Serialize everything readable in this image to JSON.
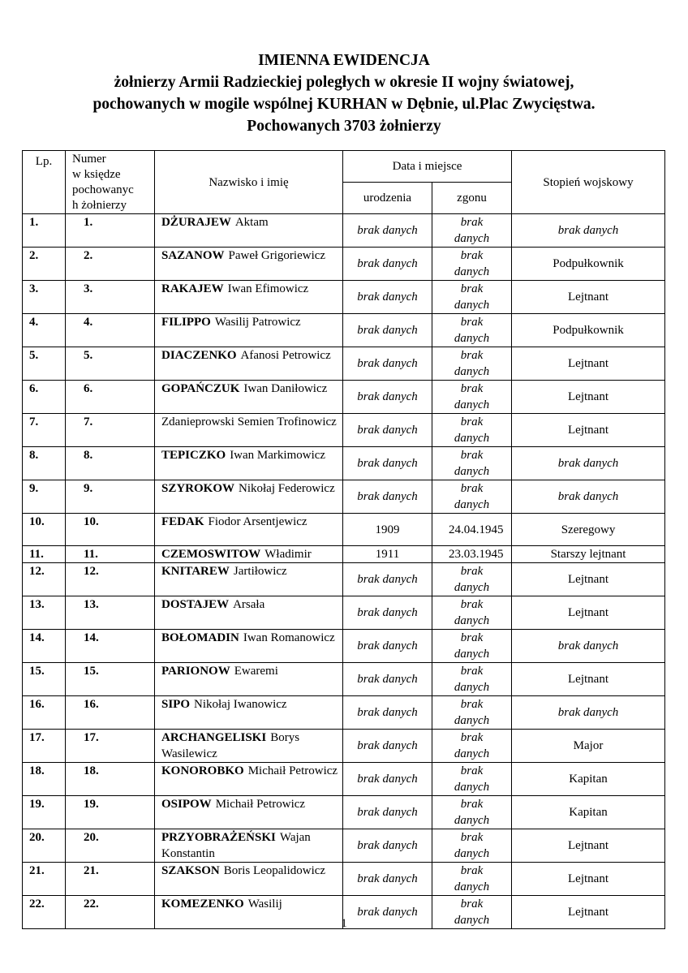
{
  "header": {
    "title": "IMIENNA EWIDENCJA",
    "subtitle_lines": [
      "żołnierzy Armii Radzieckiej poległych w okresie II wojny światowej,",
      "pochowanych w mogile wspólnej KURHAN w Dębnie, ul.Plac Zwycięstwa.",
      "Pochowanych 3703 żołnierzy"
    ]
  },
  "table": {
    "columns": {
      "lp": "Lp.",
      "number": [
        "Numer",
        "w księdze",
        "pochowanyc",
        "h żołnierzy"
      ],
      "name": "Nazwisko i imię",
      "date_place": "Data i miejsce",
      "birth": "urodzenia",
      "death": "zgonu",
      "rank": "Stopień wojskowy"
    },
    "rows": [
      {
        "lp": "1.",
        "number": "1.",
        "surname": "DŻURAJEW",
        "given": "Aktam",
        "birth": {
          "text": "brak danych",
          "style": "italic"
        },
        "death": {
          "text": "brak danych",
          "style": "italic"
        },
        "rank": {
          "text": "brak danych",
          "style": "italic"
        }
      },
      {
        "lp": "2.",
        "number": "2.",
        "surname": "SAZANOW",
        "given": "Paweł Grigoriewicz",
        "birth": {
          "text": "brak danych",
          "style": "italic"
        },
        "death": {
          "text": "brak danych",
          "style": "italic"
        },
        "rank": {
          "text": "Podpułkownik",
          "style": "normal"
        }
      },
      {
        "lp": "3.",
        "number": "3.",
        "surname": "RAKAJEW",
        "given": "Iwan Efimowicz",
        "birth": {
          "text": "brak danych",
          "style": "italic"
        },
        "death": {
          "text": "brak danych",
          "style": "italic"
        },
        "rank": {
          "text": "Lejtnant",
          "style": "normal"
        }
      },
      {
        "lp": "4.",
        "number": "4.",
        "surname": "FILIPPO",
        "given": "Wasilij Patrowicz",
        "birth": {
          "text": "brak danych",
          "style": "italic"
        },
        "death": {
          "text": "brak danych",
          "style": "italic"
        },
        "rank": {
          "text": "Podpułkownik",
          "style": "normal"
        }
      },
      {
        "lp": "5.",
        "number": "5.",
        "surname": "DIACZENKO",
        "given": "Afanosi Petrowicz",
        "birth": {
          "text": "brak danych",
          "style": "italic"
        },
        "death": {
          "text": "brak danych",
          "style": "italic"
        },
        "rank": {
          "text": "Lejtnant",
          "style": "normal"
        }
      },
      {
        "lp": "6.",
        "number": "6.",
        "surname": "GOPAŃCZUK",
        "given": "Iwan Daniłowicz",
        "birth": {
          "text": "brak danych",
          "style": "italic"
        },
        "death": {
          "text": "brak danych",
          "style": "italic"
        },
        "rank": {
          "text": "Lejtnant",
          "style": "normal"
        }
      },
      {
        "lp": "7.",
        "number": "7.",
        "name": "Zdanieprowski Semien Trofinowicz",
        "birth": {
          "text": "brak danych",
          "style": "italic"
        },
        "death": {
          "text": "brak danych",
          "style": "italic"
        },
        "rank": {
          "text": "Lejtnant",
          "style": "normal"
        }
      },
      {
        "lp": "8.",
        "number": "8.",
        "surname": "TEPICZKO",
        "given": "Iwan Markimowicz",
        "birth": {
          "text": "brak danych",
          "style": "italic"
        },
        "death": {
          "text": "brak danych",
          "style": "italic"
        },
        "rank": {
          "text": "brak danych",
          "style": "italic"
        }
      },
      {
        "lp": "9.",
        "number": "9.",
        "surname": "SZYROKOW",
        "given": "Nikołaj Federowicz",
        "birth": {
          "text": "brak danych",
          "style": "italic"
        },
        "death": {
          "text": "brak danych",
          "style": "italic"
        },
        "rank": {
          "text": "brak danych",
          "style": "italic"
        }
      },
      {
        "lp": "10.",
        "number": "10.",
        "surname": "FEDAK",
        "given": "Fiodor Arsentjewicz",
        "birth": {
          "text": "1909",
          "style": "normal"
        },
        "death": {
          "text": "24.04.1945",
          "style": "normal"
        },
        "rank": {
          "text": "Szeregowy",
          "style": "normal"
        }
      },
      {
        "lp": "11.",
        "number": "11.",
        "surname": "CZEMOSWITOW",
        "given": "Władimir",
        "birth": {
          "text": "1911",
          "style": "normal"
        },
        "death": {
          "text": "23.03.1945",
          "style": "normal"
        },
        "rank": {
          "text": "Starszy lejtnant",
          "style": "normal"
        }
      },
      {
        "lp": "12.",
        "number": "12.",
        "surname": "KNITAREW",
        "given": "Jartiłowicz",
        "birth": {
          "text": "brak danych",
          "style": "italic"
        },
        "death": {
          "text": "brak danych",
          "style": "italic"
        },
        "rank": {
          "text": "Lejtnant",
          "style": "normal"
        }
      },
      {
        "lp": "13.",
        "number": "13.",
        "surname": "DOSTAJEW",
        "given": "Arsała",
        "birth": {
          "text": "brak danych",
          "style": "italic"
        },
        "death": {
          "text": "brak danych",
          "style": "italic"
        },
        "rank": {
          "text": "Lejtnant",
          "style": "normal"
        }
      },
      {
        "lp": "14.",
        "number": "14.",
        "surname": "BOŁOMADIN",
        "given": "Iwan Romanowicz",
        "birth": {
          "text": "brak danych",
          "style": "italic"
        },
        "death": {
          "text": "brak danych",
          "style": "italic"
        },
        "rank": {
          "text": "brak danych",
          "style": "italic"
        }
      },
      {
        "lp": "15.",
        "number": "15.",
        "surname": "PARIONOW",
        "given": "Ewaremi",
        "birth": {
          "text": "brak danych",
          "style": "italic"
        },
        "death": {
          "text": "brak danych",
          "style": "italic"
        },
        "rank": {
          "text": "Lejtnant",
          "style": "normal"
        }
      },
      {
        "lp": "16.",
        "number": "16.",
        "surname": "SIPO",
        "given": "Nikołaj Iwanowicz",
        "birth": {
          "text": "brak danych",
          "style": "italic"
        },
        "death": {
          "text": "brak danych",
          "style": "italic"
        },
        "rank": {
          "text": "brak danych",
          "style": "italic"
        }
      },
      {
        "lp": "17.",
        "number": "17.",
        "surname": "ARCHANGELISKI",
        "given": "Borys Wasilewicz",
        "birth": {
          "text": "brak danych",
          "style": "italic"
        },
        "death": {
          "text": "brak danych",
          "style": "italic"
        },
        "rank": {
          "text": "Major",
          "style": "normal"
        }
      },
      {
        "lp": "18.",
        "number": "18.",
        "surname": "KONOROBKO",
        "given": "Michaił Petrowicz",
        "birth": {
          "text": "brak danych",
          "style": "italic"
        },
        "death": {
          "text": "brak danych",
          "style": "italic"
        },
        "rank": {
          "text": "Kapitan",
          "style": "normal"
        }
      },
      {
        "lp": "19.",
        "number": "19.",
        "surname": "OSIPOW",
        "given": "Michaił Petrowicz",
        "birth": {
          "text": "brak danych",
          "style": "italic"
        },
        "death": {
          "text": "brak danych",
          "style": "italic"
        },
        "rank": {
          "text": "Kapitan",
          "style": "normal"
        }
      },
      {
        "lp": "20.",
        "number": "20.",
        "surname": "PRZYOBRAŻEŃSKI",
        "given": "Wajan Konstantin",
        "birth": {
          "text": "brak danych",
          "style": "italic"
        },
        "death": {
          "text": "brak danych",
          "style": "italic"
        },
        "rank": {
          "text": "Lejtnant",
          "style": "normal"
        }
      },
      {
        "lp": "21.",
        "number": "21.",
        "surname": "SZAKSON",
        "given": "Boris Leopalidowicz",
        "birth": {
          "text": "brak danych",
          "style": "italic"
        },
        "death": {
          "text": "brak danych",
          "style": "italic"
        },
        "rank": {
          "text": "Lejtnant",
          "style": "normal"
        }
      },
      {
        "lp": "22.",
        "number": "22.",
        "surname": "KOMEZENKO",
        "given": "Wasilij",
        "birth": {
          "text": "brak danych",
          "style": "italic"
        },
        "death": {
          "text": "brak danych",
          "style": "italic"
        },
        "rank": {
          "text": "Lejtnant",
          "style": "normal"
        }
      }
    ]
  },
  "footer": {
    "page_number": "1"
  }
}
